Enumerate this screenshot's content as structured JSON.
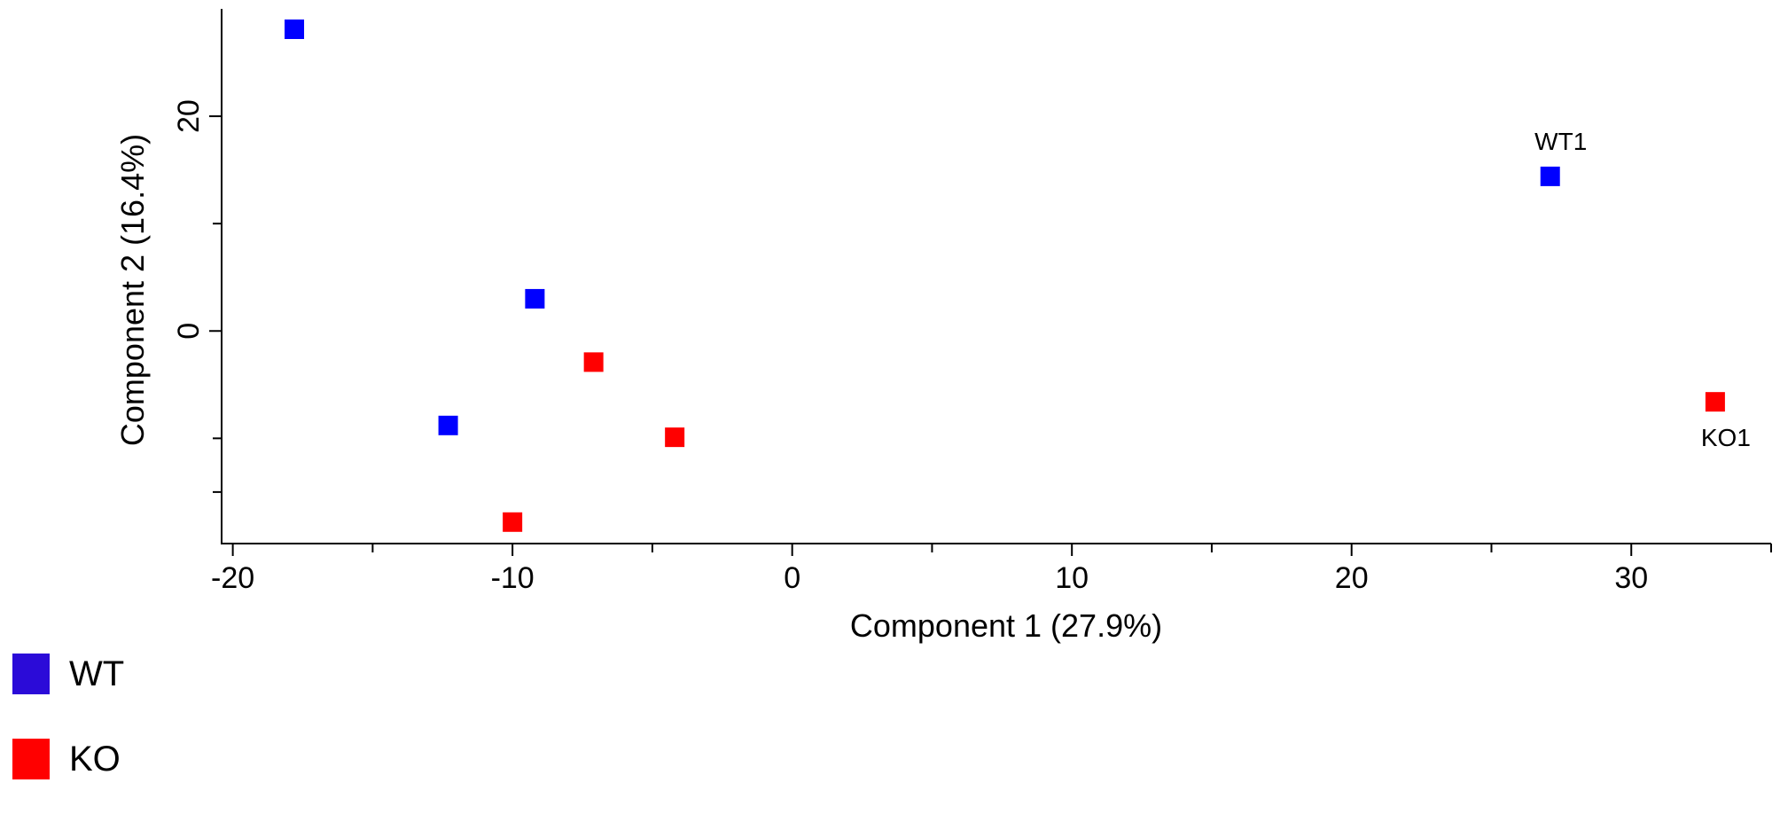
{
  "chart_data": {
    "type": "scatter",
    "xlabel": "Component 1 (27.9%)",
    "ylabel": "Component 2 (16.4%)",
    "xlim": [
      -20.4,
      35
    ],
    "ylim": [
      -19.8,
      30
    ],
    "x_ticks": [
      -20,
      -10,
      0,
      10,
      20,
      30
    ],
    "x_minor_ticks": [
      -15,
      -5,
      5,
      15,
      25,
      35
    ],
    "y_ticks": [
      0,
      20
    ],
    "y_minor_ticks": [
      -15,
      -10,
      10
    ],
    "legend_position": "bottom-left",
    "series": [
      {
        "name": "WT",
        "color": "#0000ff",
        "legend_color": "#2b0bd8",
        "marker": "square",
        "points": [
          {
            "x": -17.8,
            "y": 28.1,
            "label": ""
          },
          {
            "x": -9.2,
            "y": 3.0,
            "label": ""
          },
          {
            "x": -12.3,
            "y": -8.8,
            "label": ""
          },
          {
            "x": 27.1,
            "y": 14.4,
            "label": "WT1"
          }
        ]
      },
      {
        "name": "KO",
        "color": "#ff0000",
        "legend_color": "#ff0000",
        "marker": "square",
        "points": [
          {
            "x": -7.1,
            "y": -2.9,
            "label": ""
          },
          {
            "x": -4.2,
            "y": -9.9,
            "label": ""
          },
          {
            "x": -10.0,
            "y": -17.8,
            "label": ""
          },
          {
            "x": 33.0,
            "y": -6.6,
            "label": "KO1"
          }
        ]
      }
    ]
  }
}
